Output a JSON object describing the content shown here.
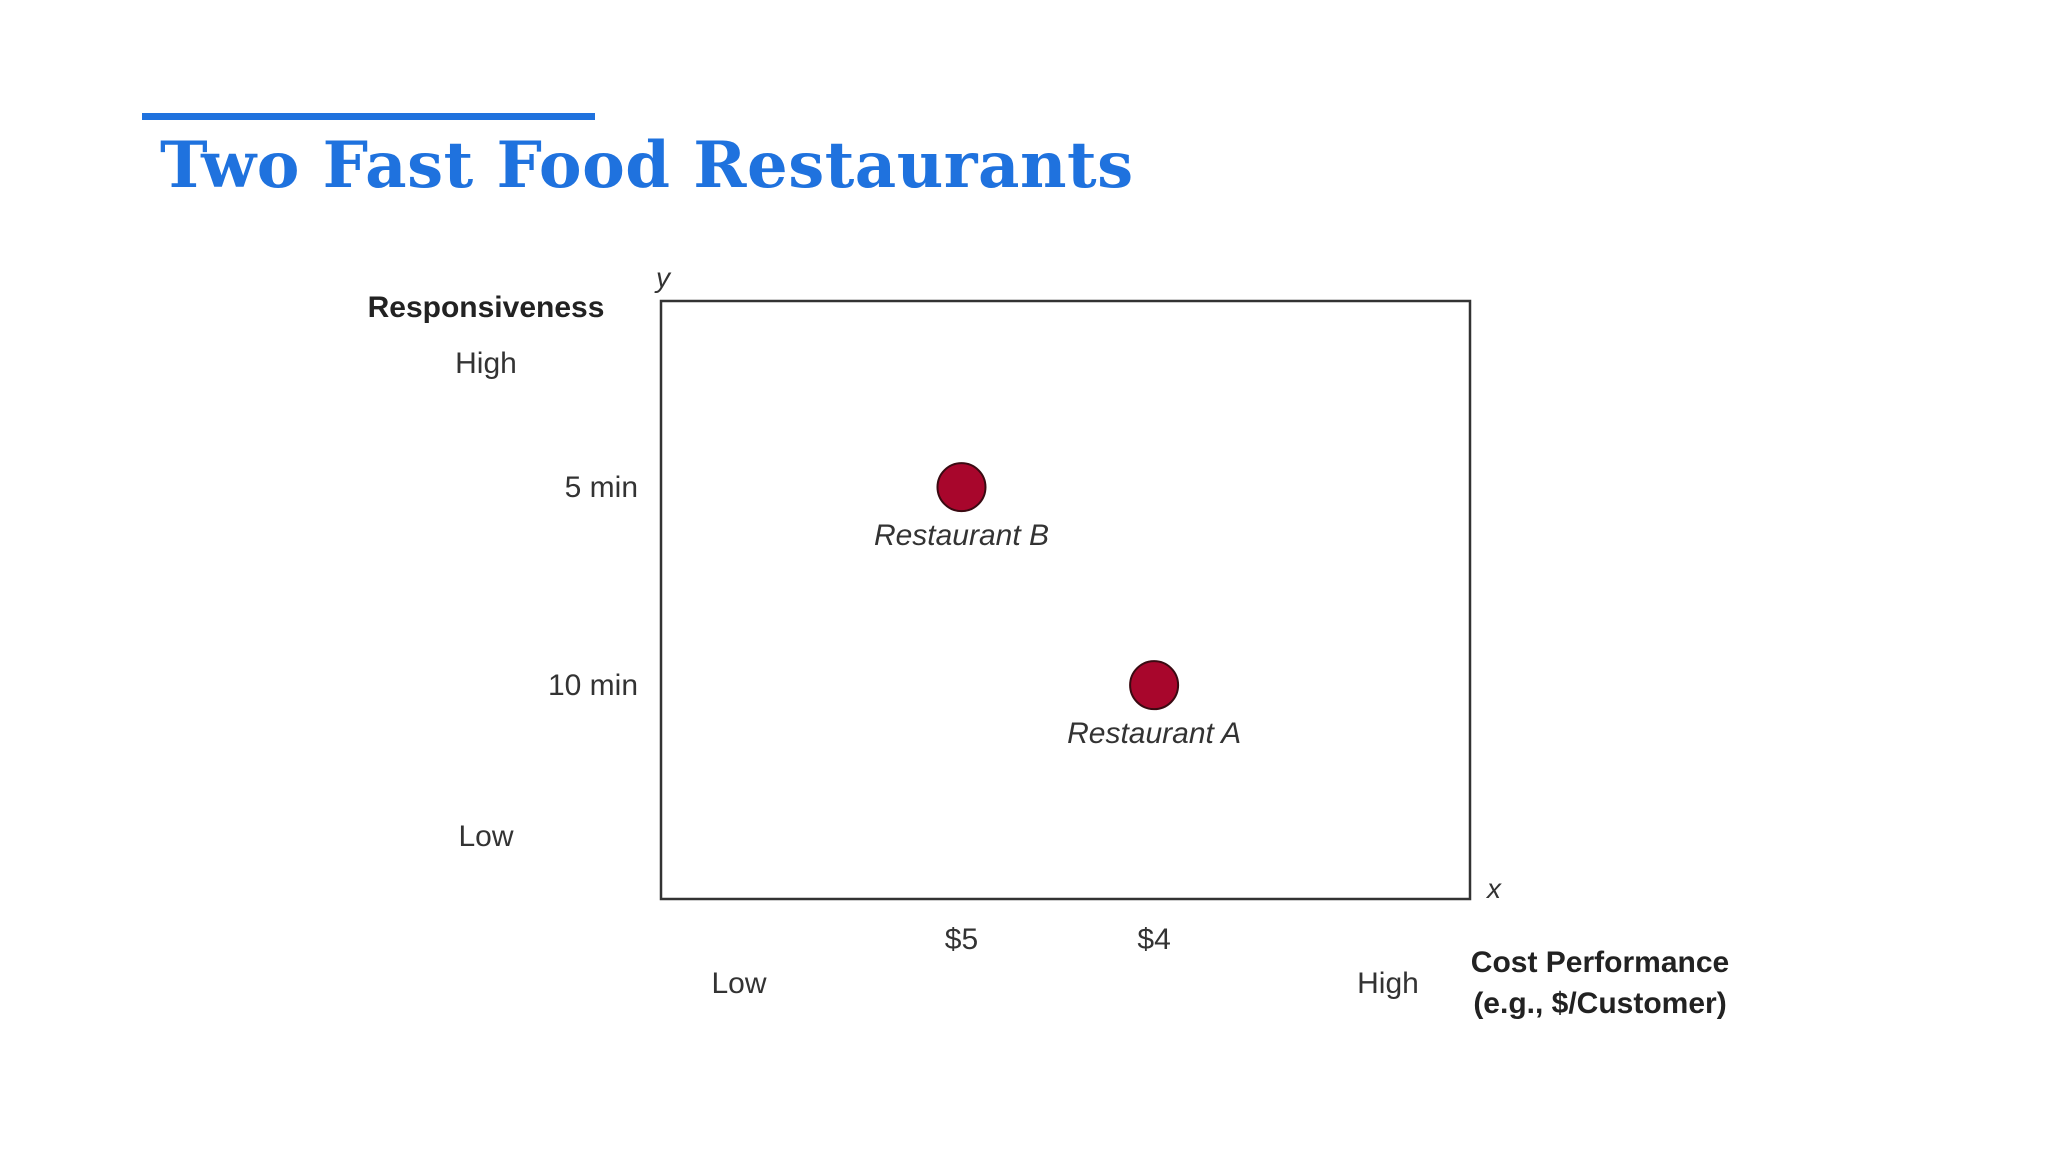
{
  "slide": {
    "title": "Two Fast Food Restaurants"
  },
  "chart_data": {
    "type": "scatter",
    "title": "",
    "xlabel": [
      "Cost Performance",
      "(e.g., $/Customer)"
    ],
    "ylabel": "Responsiveness",
    "x_axis_symbol": "x",
    "y_axis_symbol": "y",
    "x_direction_labels": {
      "low": "Low",
      "high": "High"
    },
    "y_direction_labels": {
      "high": "High",
      "low": "Low"
    },
    "x_ticks": [
      {
        "value": 5,
        "label": "$5"
      },
      {
        "value": 4,
        "label": "$4"
      }
    ],
    "y_ticks": [
      {
        "value": 5,
        "label": "5 min"
      },
      {
        "value": 10,
        "label": "10 min"
      }
    ],
    "x_unit": "$ per customer (axis reversed: lower cost = higher performance)",
    "y_unit": "minutes wait (axis reversed: shorter wait = higher responsiveness)",
    "xlim": [
      6.56,
      2.36
    ],
    "ylim": [
      15.4,
      0.3
    ],
    "points": [
      {
        "label": "Restaurant B",
        "x": 5,
        "y": 5
      },
      {
        "label": "Restaurant A",
        "x": 4,
        "y": 10
      }
    ],
    "colors": {
      "point_fill": "#a8062c",
      "point_stroke": "#3a0a12",
      "frame": "#333333",
      "text": "#333333",
      "title": "#1f72de"
    }
  }
}
